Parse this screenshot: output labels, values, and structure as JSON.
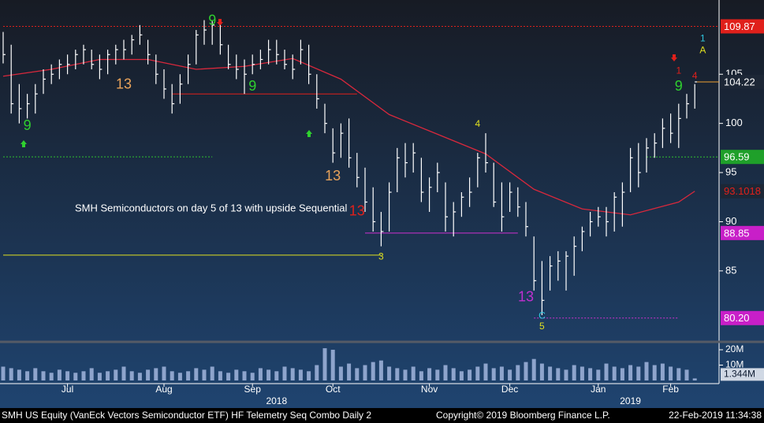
{
  "chart_data": {
    "type": "ohlc",
    "categories": [
      null,
      null,
      null,
      null,
      null,
      null,
      null,
      null,
      "Jul",
      null,
      null,
      null,
      null,
      null,
      null,
      null,
      null,
      null,
      null,
      null,
      "Aug",
      null,
      null,
      null,
      null,
      null,
      null,
      null,
      null,
      null,
      null,
      "Sep",
      null,
      null,
      null,
      null,
      null,
      null,
      null,
      null,
      null,
      "Oct",
      null,
      null,
      null,
      null,
      null,
      null,
      null,
      null,
      null,
      null,
      null,
      "Nov",
      null,
      null,
      null,
      null,
      null,
      null,
      null,
      null,
      null,
      "Dec",
      null,
      null,
      null,
      null,
      null,
      null,
      null,
      null,
      null,
      null,
      "Jan",
      null,
      null,
      null,
      null,
      null,
      null,
      null,
      null,
      "Feb",
      null,
      null,
      null
    ],
    "year_labels": [
      {
        "value": 34,
        "label": "2018"
      },
      {
        "value": 78,
        "label": "2019"
      }
    ],
    "high": [
      109.3,
      108,
      104,
      103,
      104,
      105.5,
      106,
      106.5,
      107,
      107.5,
      108,
      107.5,
      107,
      107.5,
      108,
      108.5,
      109,
      110,
      108.5,
      107,
      105.5,
      104,
      105,
      107,
      109.5,
      110.5,
      110.5,
      110,
      108,
      107,
      106.5,
      107,
      107.5,
      108.5,
      108.5,
      107.5,
      107,
      108.5,
      108,
      105,
      102,
      99.5,
      100,
      100.5,
      97,
      95.5,
      93.5,
      91,
      94,
      97.5,
      98,
      98,
      96.5,
      94.5,
      96,
      94,
      92,
      93,
      94.5,
      97,
      99,
      96,
      94,
      94,
      93.5,
      92,
      88.5,
      86,
      86.5,
      87,
      87,
      88.5,
      89.5,
      91,
      91.5,
      91.5,
      93,
      94,
      97.5,
      98,
      98.5,
      99,
      100.5,
      101,
      102,
      103,
      104
    ],
    "low": [
      106.1,
      101,
      100,
      100.5,
      101,
      103,
      104,
      104.5,
      105,
      105.5,
      106,
      105.5,
      104.5,
      105,
      106,
      106.5,
      107,
      108,
      106,
      104,
      102.5,
      101,
      102,
      104,
      106,
      108,
      108,
      107,
      105.5,
      104.5,
      103,
      105,
      105.5,
      106,
      106,
      105.5,
      104.5,
      106,
      104,
      101.5,
      99,
      96,
      96.5,
      95.5,
      93.5,
      91,
      89,
      87.5,
      89,
      93,
      94.5,
      95,
      92,
      91,
      93,
      89,
      88.5,
      90.5,
      91.5,
      93.5,
      95,
      91.5,
      89,
      91,
      90.5,
      88.5,
      83,
      80.5,
      83,
      84,
      83,
      84.5,
      87,
      88.5,
      89.5,
      88.5,
      89,
      89.5,
      93,
      93.5,
      95,
      96.5,
      97.5,
      98,
      97.5,
      100.5,
      101.5
    ],
    "close": [
      107,
      102,
      101.5,
      102,
      103,
      104.5,
      105,
      106,
      106,
      107,
      107.5,
      106,
      105.5,
      107,
      107.5,
      107.5,
      108.5,
      109,
      107,
      105,
      103.5,
      102,
      104,
      106,
      109,
      109.5,
      110,
      108,
      106,
      105.5,
      105,
      106,
      106.5,
      107.5,
      107,
      106,
      105.5,
      107.5,
      105,
      102.5,
      100,
      97,
      99,
      96.5,
      94.5,
      92,
      90,
      89,
      93,
      96.5,
      96,
      97,
      93,
      93.5,
      95,
      90.5,
      91,
      92.5,
      93,
      96.5,
      96,
      92,
      90.5,
      93,
      91.5,
      89.5,
      84,
      82,
      85.5,
      86,
      86.5,
      87.5,
      89,
      90,
      90.5,
      90,
      92.5,
      93,
      96.5,
      95,
      97.5,
      98,
      99.5,
      99,
      100.5,
      102,
      104.22
    ],
    "bar_color": "#ffffff",
    "moving_average": {
      "color": "#d8283c",
      "x": [
        0,
        6,
        12,
        18,
        24,
        30,
        36,
        42,
        48,
        54,
        60,
        66,
        72,
        78,
        84,
        86
      ],
      "values": [
        104.8,
        105.5,
        106.5,
        106.5,
        105.5,
        105.8,
        106.6,
        104.5,
        100.9,
        98.9,
        96.9,
        93.3,
        91.3,
        90.7,
        92,
        93.1018
      ]
    },
    "ylim": [
      78.1,
      112.55
    ],
    "yticks": [
      85,
      90,
      95,
      100,
      105
    ],
    "price_tags": [
      {
        "value": 109.87,
        "color": "#e0201b"
      },
      {
        "value": 104.22,
        "color": "#f0a030"
      },
      {
        "value": 96.59,
        "color": "#1fa02a"
      },
      {
        "value": 93.1018,
        "color": "#e0201b"
      },
      {
        "value": 88.85,
        "color": "#c81fc8"
      },
      {
        "value": 80.2,
        "label": "80.20",
        "color": "#c81fc8"
      }
    ],
    "levels": [
      {
        "value": 109.87,
        "from": 0,
        "to": 86,
        "color": "#e0201b",
        "style": "dotted"
      },
      {
        "value": 103,
        "from": 21,
        "to": 44,
        "color": "#e0201b",
        "style": "solid"
      },
      {
        "value": 96.6,
        "from": 0,
        "to": 26,
        "color": "#2fc02f",
        "style": "dotted"
      },
      {
        "value": 96.59,
        "from": 80,
        "to": 86,
        "color": "#2fc02f",
        "style": "dotted"
      },
      {
        "value": 88.85,
        "from": 45,
        "to": 64,
        "color": "#d030d0",
        "style": "solid"
      },
      {
        "value": 86.6,
        "from": 0,
        "to": 47,
        "color": "#e0e020",
        "style": "solid"
      },
      {
        "value": 80.2,
        "from": 66,
        "to": 84,
        "color": "#d030d0",
        "style": "dotted"
      }
    ],
    "annotations": [
      {
        "text": "13",
        "x": 15,
        "y": 103.9,
        "color": "#e8a25a"
      },
      {
        "text": "9",
        "x": 26,
        "y": 110.4,
        "color": "#2fd02f"
      },
      {
        "text": "9",
        "x": 31,
        "y": 103.7,
        "color": "#2fd02f"
      },
      {
        "text": "9",
        "x": 3,
        "y": 99.7,
        "color": "#2fd02f"
      },
      {
        "text": "13",
        "x": 41,
        "y": 94.6,
        "color": "#e8a25a"
      },
      {
        "text": "13",
        "x": 44,
        "y": 91,
        "color": "#e0201b"
      },
      {
        "text": "13",
        "x": 65,
        "y": 82.3,
        "color": "#c030d0"
      },
      {
        "text": "3",
        "x": 47,
        "y": 86.4,
        "color": "#e0e020"
      },
      {
        "text": "4",
        "x": 59,
        "y": 99.9,
        "color": "#e0e020"
      },
      {
        "text": "C",
        "x": 67,
        "y": 80.4,
        "color": "#30c8e0"
      },
      {
        "text": "5",
        "x": 67,
        "y": 79.3,
        "color": "#e0e020"
      },
      {
        "text": "9",
        "x": 84,
        "y": 103.7,
        "color": "#2fd02f"
      },
      {
        "text": "1",
        "x": 84,
        "y": 105.3,
        "color": "#e0201b"
      },
      {
        "text": "4",
        "x": 86,
        "y": 104.8,
        "color": "#e0201b"
      },
      {
        "text": "1",
        "x": 87,
        "y": 108.6,
        "color": "#30c8e0"
      },
      {
        "text": "A",
        "x": 87,
        "y": 107.4,
        "color": "#e0e020"
      }
    ],
    "note": "SMH Semiconductors on day 5 of 13 with upside Sequential",
    "volume": {
      "color": "#8ea4cc",
      "values": [
        9,
        8,
        7,
        6,
        8,
        6,
        5,
        7,
        6,
        5,
        6,
        8,
        5,
        6,
        7,
        9,
        6,
        5,
        7,
        8,
        9,
        6,
        5,
        6,
        8,
        7,
        9,
        6,
        5,
        7,
        6,
        5,
        8,
        7,
        6,
        9,
        8,
        7,
        6,
        10,
        21,
        20,
        9,
        11,
        8,
        10,
        12,
        13,
        9,
        8,
        7,
        9,
        6,
        8,
        7,
        10,
        8,
        6,
        7,
        9,
        11,
        8,
        9,
        7,
        10,
        12,
        14,
        11,
        9,
        8,
        7,
        10,
        9,
        8,
        7,
        11,
        9,
        8,
        10,
        9,
        12,
        10,
        11,
        9,
        8,
        7,
        1.344
      ],
      "value_labels": {
        "86": "1.344M"
      },
      "ylim": [
        0,
        23.6
      ],
      "yticks": [
        {
          "value": 10,
          "label": "10M"
        },
        {
          "value": 20,
          "label": "20M"
        }
      ]
    },
    "footer": {
      "left": "SMH US Equity (VanEck Vectors Semiconductor ETF) HF Telemetry Seq Combo  Daily 2",
      "center": "Copyright© 2019 Bloomberg Finance L.P.",
      "right": "22-Feb-2019 11:34:38"
    }
  }
}
